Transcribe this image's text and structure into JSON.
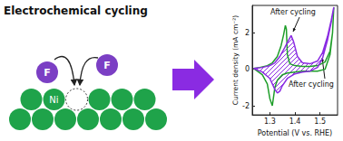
{
  "diagram": {
    "title": "Electrochemical cycling",
    "ni_label": "Ni",
    "f_labels": [
      "F",
      "F"
    ]
  },
  "chart_data": {
    "type": "line",
    "x_label": "Potential (V vs. RHE)",
    "y_label": "Current density (mA cm⁻²)",
    "xlim": [
      1.23,
      1.57
    ],
    "xticks": [
      1.3,
      1.4,
      1.5
    ],
    "ylim": [
      -2.5,
      3.5
    ],
    "yticks": [
      -2,
      0,
      2
    ],
    "grid": false,
    "annotations": [
      "After cycling",
      "After cycling"
    ],
    "series": [
      {
        "color": "#1f9e2a",
        "x": [
          1.235,
          1.26,
          1.29,
          1.31,
          1.33,
          1.345,
          1.355,
          1.362,
          1.366,
          1.37,
          1.38,
          1.4,
          1.43,
          1.46,
          1.49,
          1.52,
          1.54,
          1.55,
          1.555,
          1.55,
          1.54,
          1.52,
          1.49,
          1.46,
          1.43,
          1.4,
          1.37,
          1.35,
          1.33,
          1.32,
          1.31,
          1.3,
          1.29,
          1.27,
          1.25,
          1.235
        ],
        "values": [
          0.05,
          0.1,
          0.2,
          0.35,
          0.7,
          1.3,
          1.9,
          2.4,
          2.2,
          0.8,
          0.3,
          0.2,
          0.15,
          0.15,
          0.2,
          0.4,
          1.0,
          2.0,
          3.4,
          2.0,
          0.8,
          0.0,
          -0.1,
          -0.1,
          -0.1,
          -0.15,
          -0.2,
          -0.3,
          -0.6,
          -1.0,
          -2.0,
          -1.6,
          -0.8,
          -0.3,
          -0.1,
          0.05
        ]
      },
      {
        "color": "#8a2be2",
        "x": [
          1.235,
          1.27,
          1.3,
          1.32,
          1.34,
          1.36,
          1.375,
          1.385,
          1.395,
          1.41,
          1.43,
          1.46,
          1.49,
          1.51,
          1.53,
          1.545,
          1.555,
          1.545,
          1.53,
          1.51,
          1.49,
          1.46,
          1.43,
          1.4,
          1.37,
          1.35,
          1.34,
          1.33,
          1.32,
          1.3,
          1.27,
          1.235
        ],
        "values": [
          0.05,
          0.1,
          0.2,
          0.35,
          0.7,
          1.2,
          1.6,
          1.85,
          1.5,
          0.7,
          0.35,
          0.3,
          0.45,
          0.9,
          1.8,
          2.7,
          3.4,
          2.6,
          1.6,
          0.6,
          0.1,
          -0.1,
          -0.15,
          -0.25,
          -0.5,
          -0.9,
          -1.2,
          -1.3,
          -1.1,
          -0.5,
          -0.15,
          0.05
        ]
      }
    ]
  }
}
